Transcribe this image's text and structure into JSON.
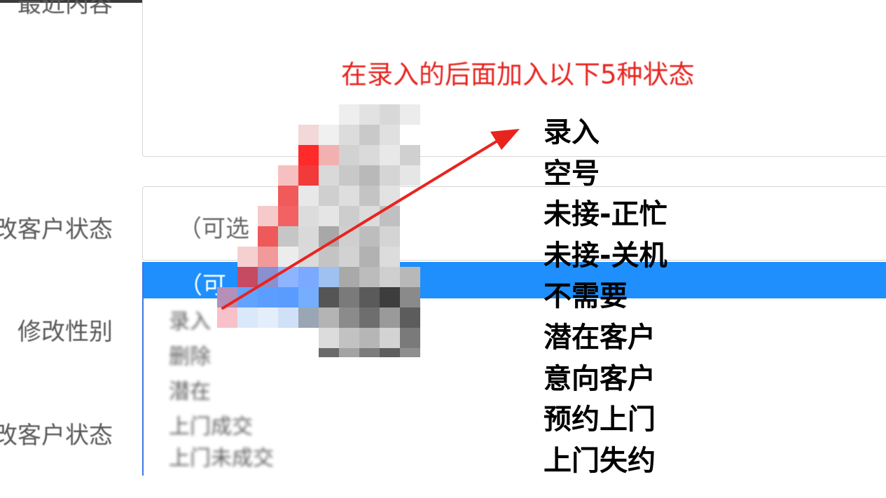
{
  "form": {
    "recent_content_label": "最近内容",
    "customer_status_label": "改客户状态",
    "gender_label": "修改性别",
    "customer_status_label_2": "改客户状态",
    "select_placeholder": "（可选",
    "dropdown_selected": "（可",
    "dropdown_options": [
      "录入",
      "删除",
      "潜在",
      "上门成交",
      "上门未成交"
    ]
  },
  "annotation": {
    "note": "在录入的后面加入以下5种状态",
    "statuses": [
      "录入",
      "空号",
      "未接-正忙",
      "未接-关机",
      "不需要",
      "潜在客户",
      "意向客户",
      "预约上门",
      "上门失约"
    ]
  },
  "colors": {
    "annotation_red": "#e8241f",
    "selected_blue": "#1e8ffd",
    "label_gray": "#5a5a5a",
    "border_gray": "#d6d6d6"
  }
}
